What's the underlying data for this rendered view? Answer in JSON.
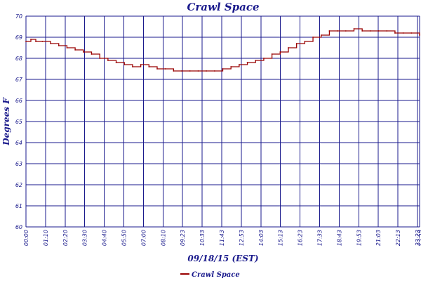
{
  "chart_data": {
    "type": "line",
    "title": "Crawl Space",
    "xlabel": "09/18/15 (EST)",
    "ylabel": "Degrees F",
    "ylim": [
      60,
      70
    ],
    "yticks": [
      "60",
      "61",
      "62",
      "63",
      "64",
      "65",
      "66",
      "67",
      "68",
      "69",
      "70"
    ],
    "xticks": [
      "00:00",
      "01:10",
      "02:20",
      "03:30",
      "04:40",
      "05:50",
      "07:00",
      "08:10",
      "09:23",
      "10:33",
      "11:43",
      "12:53",
      "14:03",
      "15:13",
      "16:23",
      "17:33",
      "18:43",
      "19:53",
      "21:03",
      "22:13",
      "23:23",
      "23:59"
    ],
    "grid": true,
    "legend_position": "bottom-center",
    "series": [
      {
        "name": "Crawl Space",
        "color": "#990000",
        "x": [
          0,
          0.3,
          0.6,
          1.0,
          1.5,
          2.0,
          2.5,
          3.0,
          3.5,
          4.0,
          4.5,
          5.0,
          5.5,
          6.0,
          6.5,
          7.0,
          7.5,
          8.0,
          8.5,
          9.0,
          9.5,
          10.0,
          10.5,
          11.0,
          11.5,
          12.0,
          12.5,
          13.0,
          13.5,
          14.0,
          14.5,
          15.0,
          15.5,
          16.0,
          16.5,
          17.0,
          17.5,
          18.0,
          18.5,
          19.0,
          19.5,
          20.0,
          20.5,
          21.0,
          21.5,
          22.0,
          22.5,
          23.0,
          23.5,
          24.0
        ],
        "y": [
          68.8,
          68.9,
          68.8,
          68.8,
          68.7,
          68.6,
          68.5,
          68.4,
          68.3,
          68.2,
          68.0,
          67.9,
          67.8,
          67.7,
          67.6,
          67.7,
          67.6,
          67.5,
          67.5,
          67.4,
          67.4,
          67.4,
          67.4,
          67.4,
          67.4,
          67.5,
          67.6,
          67.7,
          67.8,
          67.9,
          68.0,
          68.2,
          68.3,
          68.5,
          68.7,
          68.8,
          69.0,
          69.1,
          69.3,
          69.3,
          69.3,
          69.4,
          69.3,
          69.3,
          69.3,
          69.3,
          69.2,
          69.2,
          69.2,
          69.1
        ]
      }
    ]
  }
}
